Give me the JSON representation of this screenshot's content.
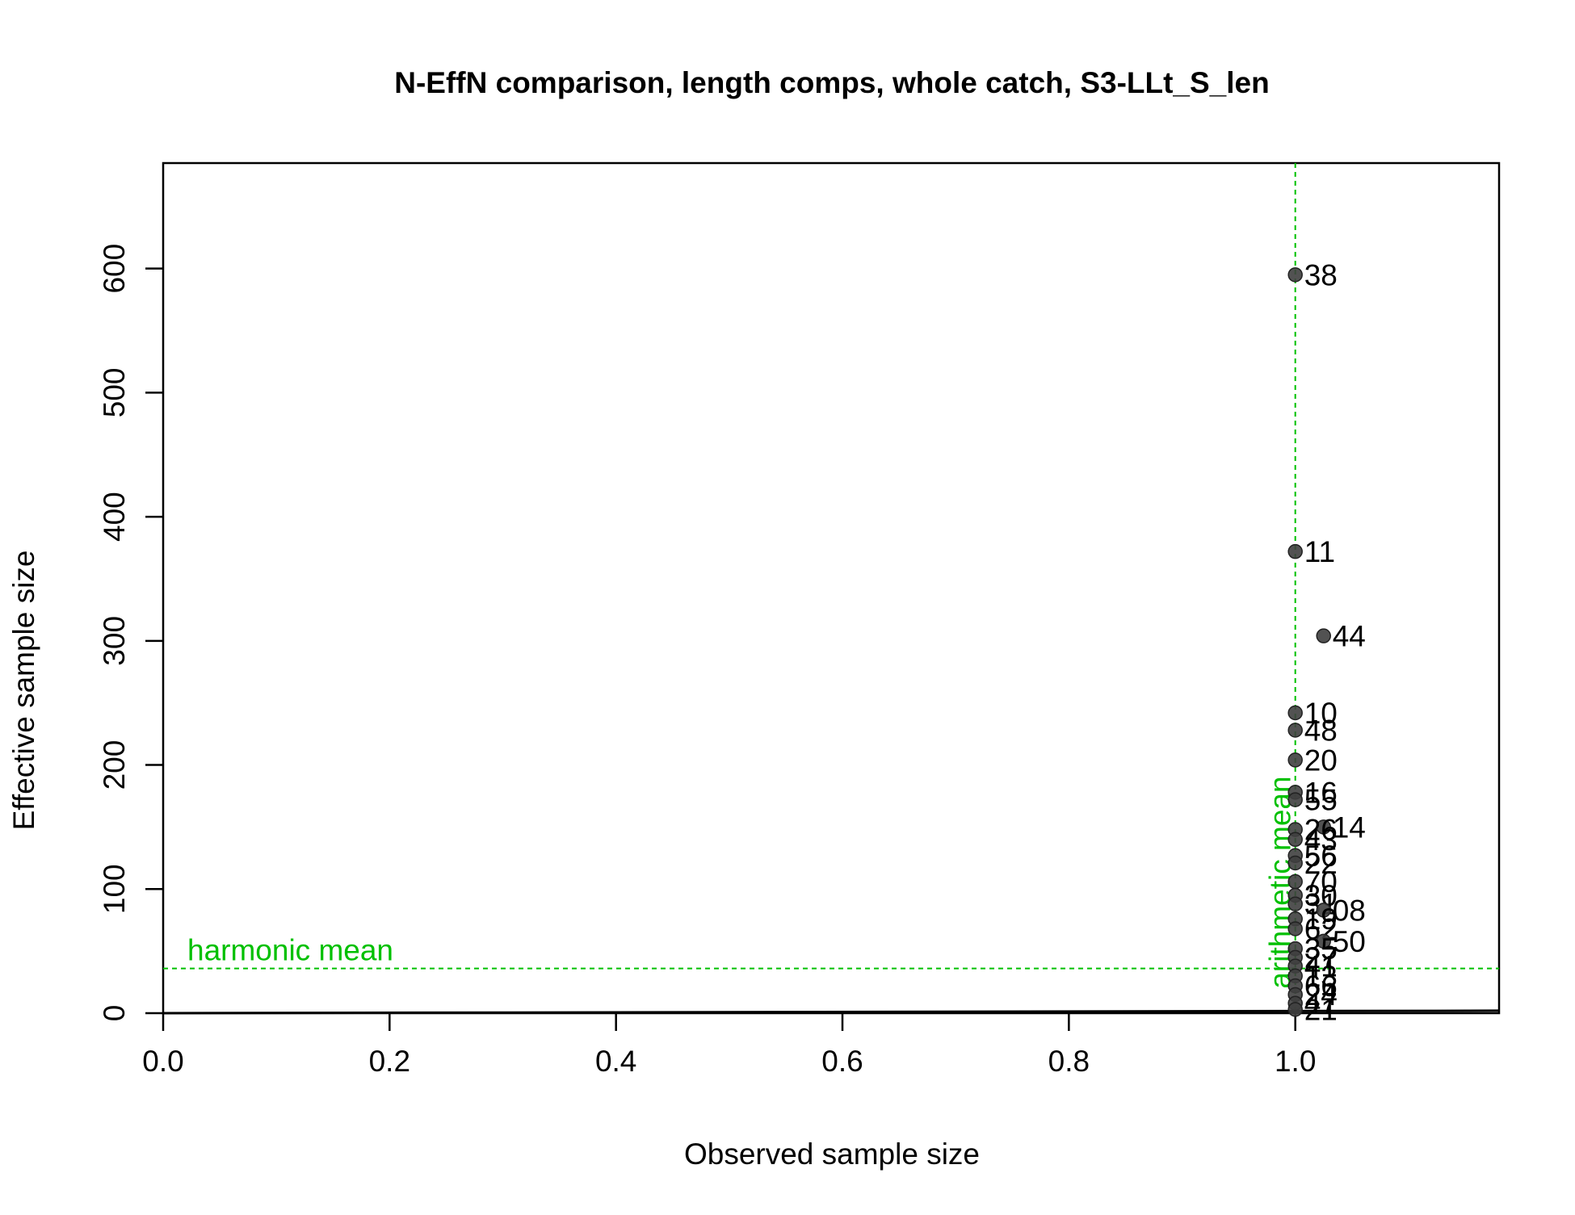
{
  "chart_data": {
    "type": "scatter",
    "title": "N-EffN comparison, length comps, whole catch, S3-LLt_S_len",
    "xlabel": "Observed sample size",
    "ylabel": "Effective sample size",
    "xlim": [
      0,
      1.18
    ],
    "ylim": [
      0,
      685
    ],
    "x_ticks": [
      "0.0",
      "0.2",
      "0.4",
      "0.6",
      "0.8",
      "1.0"
    ],
    "x_tick_values": [
      0,
      0.2,
      0.4,
      0.6,
      0.8,
      1.0
    ],
    "y_ticks": [
      "0",
      "100",
      "200",
      "300",
      "400",
      "500",
      "600"
    ],
    "y_tick_values": [
      0,
      100,
      200,
      300,
      400,
      500,
      600
    ],
    "grid": false,
    "legend": "none",
    "point_color": "#3f3f3f",
    "reference_color": "#00c000",
    "reference_lines": {
      "arithmetic_mean": {
        "x": 1.0,
        "label": "arithmetic mean"
      },
      "harmonic_mean": {
        "y": 36,
        "label": "harmonic mean"
      }
    },
    "fit_line": {
      "x": [
        0,
        1.18
      ],
      "y": [
        0,
        2
      ]
    },
    "points": [
      {
        "label": "38",
        "x": 1.0,
        "y": 595
      },
      {
        "label": "11",
        "x": 1.0,
        "y": 372
      },
      {
        "label": "44",
        "x": 1.025,
        "y": 304
      },
      {
        "label": "10",
        "x": 1.0,
        "y": 242
      },
      {
        "label": "48",
        "x": 1.0,
        "y": 228
      },
      {
        "label": "20",
        "x": 1.0,
        "y": 204
      },
      {
        "label": "16",
        "x": 1.0,
        "y": 178
      },
      {
        "label": "55",
        "x": 1.0,
        "y": 172
      },
      {
        "label": "14",
        "x": 1.025,
        "y": 150
      },
      {
        "label": "26",
        "x": 1.0,
        "y": 148
      },
      {
        "label": "43",
        "x": 1.0,
        "y": 140
      },
      {
        "label": "56",
        "x": 1.0,
        "y": 127
      },
      {
        "label": "22",
        "x": 1.0,
        "y": 121
      },
      {
        "label": "70",
        "x": 1.0,
        "y": 106
      },
      {
        "label": "30",
        "x": 1.0,
        "y": 95
      },
      {
        "label": "31",
        "x": 1.0,
        "y": 88
      },
      {
        "label": "08",
        "x": 1.025,
        "y": 83
      },
      {
        "label": "19",
        "x": 1.0,
        "y": 76
      },
      {
        "label": "62",
        "x": 1.0,
        "y": 68
      },
      {
        "label": "50",
        "x": 1.025,
        "y": 58
      },
      {
        "label": "35",
        "x": 1.0,
        "y": 52
      },
      {
        "label": "27",
        "x": 1.0,
        "y": 45
      },
      {
        "label": "41",
        "x": 1.0,
        "y": 38
      },
      {
        "label": "13",
        "x": 1.0,
        "y": 30
      },
      {
        "label": "66",
        "x": 1.0,
        "y": 22
      },
      {
        "label": "24",
        "x": 1.0,
        "y": 15
      },
      {
        "label": "47",
        "x": 1.0,
        "y": 8
      },
      {
        "label": "21",
        "x": 1.0,
        "y": 3
      }
    ]
  }
}
